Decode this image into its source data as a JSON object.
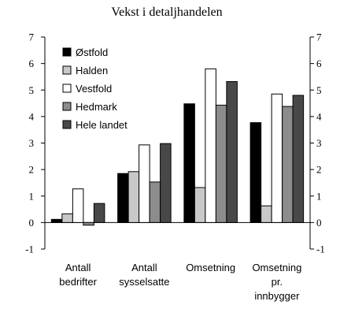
{
  "chart_data": {
    "type": "bar",
    "title": "Vekst i detaljhandelen",
    "categories": [
      [
        "Antall",
        "bedrifter"
      ],
      [
        "Antall",
        "sysselsatte"
      ],
      [
        "Omsetning"
      ],
      [
        "Omsetning",
        "pr.",
        "innbygger"
      ]
    ],
    "series": [
      {
        "name": "Østfold",
        "color": "#000000",
        "values": [
          0.12,
          1.85,
          4.48,
          3.77
        ]
      },
      {
        "name": "Halden",
        "color": "#c8c8c8",
        "values": [
          0.33,
          1.92,
          1.32,
          0.63
        ]
      },
      {
        "name": "Vestfold",
        "color": "#ffffff",
        "values": [
          1.27,
          2.93,
          5.8,
          4.85
        ]
      },
      {
        "name": "Hedmark",
        "color": "#8c8c8c",
        "values": [
          -0.1,
          1.53,
          4.43,
          4.38
        ]
      },
      {
        "name": "Hele landet",
        "color": "#484848",
        "values": [
          0.72,
          2.98,
          5.32,
          4.8
        ]
      }
    ],
    "ylim": [
      -1,
      7
    ],
    "yticks": [
      -1,
      0,
      1,
      2,
      3,
      4,
      5,
      6,
      7
    ],
    "legend_position": "top-left",
    "grid": false
  }
}
